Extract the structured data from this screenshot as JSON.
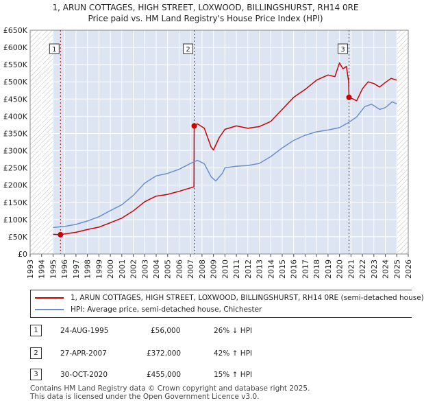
{
  "title_line1": "1, ARUN COTTAGES, HIGH STREET, LOXWOOD, BILLINGSHURST, RH14 0RE",
  "title_line2": "Price paid vs. HM Land Registry's House Price Index (HPI)",
  "colors": {
    "red": "#cc0000",
    "blue": "#6a8fcc",
    "shade": "#dde5f3",
    "grid": "#cccccc"
  },
  "chart_data": {
    "type": "line",
    "xlim": [
      1993,
      2026
    ],
    "ylim": [
      0,
      650000
    ],
    "y_ticks": [
      0,
      50000,
      100000,
      150000,
      200000,
      250000,
      300000,
      350000,
      400000,
      450000,
      500000,
      550000,
      600000,
      650000
    ],
    "y_tick_labels": [
      "£0",
      "£50K",
      "£100K",
      "£150K",
      "£200K",
      "£250K",
      "£300K",
      "£350K",
      "£400K",
      "£450K",
      "£500K",
      "£550K",
      "£600K",
      "£650K"
    ],
    "x_tick_labels": [
      "1993",
      "1994",
      "1995",
      "1996",
      "1997",
      "1998",
      "1999",
      "2000",
      "2001",
      "2002",
      "2003",
      "2004",
      "2005",
      "2006",
      "2007",
      "2008",
      "2009",
      "2010",
      "2011",
      "2012",
      "2013",
      "2014",
      "2015",
      "2016",
      "2017",
      "2018",
      "2019",
      "2020",
      "2021",
      "2022",
      "2023",
      "2024",
      "2025",
      "2026"
    ],
    "hatched_before": 1995.0,
    "hatched_after": 2025.0,
    "series": [
      {
        "name": "1, ARUN COTTAGES, HIGH STREET, LOXWOOD, BILLINGSHURST, RH14 0RE (semi-detached house)",
        "color": "#cc0000",
        "points": [
          [
            1995.0,
            57000
          ],
          [
            1995.65,
            56000
          ],
          [
            1996,
            58000
          ],
          [
            1997,
            63000
          ],
          [
            1998,
            71000
          ],
          [
            1999,
            78000
          ],
          [
            2000,
            91000
          ],
          [
            2001,
            104000
          ],
          [
            2002,
            125000
          ],
          [
            2003,
            152000
          ],
          [
            2004,
            168000
          ],
          [
            2005,
            173000
          ],
          [
            2006,
            182000
          ],
          [
            2007.3,
            195000
          ],
          [
            2007.32,
            372000
          ],
          [
            2007.6,
            378000
          ],
          [
            2008.2,
            365000
          ],
          [
            2008.8,
            310000
          ],
          [
            2009.0,
            302000
          ],
          [
            2009.5,
            338000
          ],
          [
            2010,
            362000
          ],
          [
            2011,
            372000
          ],
          [
            2012,
            365000
          ],
          [
            2013,
            370000
          ],
          [
            2014,
            385000
          ],
          [
            2015,
            420000
          ],
          [
            2016,
            455000
          ],
          [
            2017,
            478000
          ],
          [
            2018,
            505000
          ],
          [
            2019,
            520000
          ],
          [
            2019.6,
            515000
          ],
          [
            2020.0,
            555000
          ],
          [
            2020.3,
            538000
          ],
          [
            2020.6,
            545000
          ],
          [
            2020.8,
            500000
          ],
          [
            2020.83,
            455000
          ],
          [
            2021.2,
            450000
          ],
          [
            2021.5,
            445000
          ],
          [
            2022.0,
            480000
          ],
          [
            2022.5,
            500000
          ],
          [
            2023,
            495000
          ],
          [
            2023.5,
            485000
          ],
          [
            2024,
            498000
          ],
          [
            2024.5,
            510000
          ],
          [
            2025.0,
            505000
          ]
        ]
      },
      {
        "name": "HPI: Average price, semi-detached house, Chichester",
        "color": "#6a8fcc",
        "points": [
          [
            1995.0,
            77000
          ],
          [
            1996,
            80000
          ],
          [
            1997,
            86000
          ],
          [
            1998,
            96000
          ],
          [
            1999,
            108000
          ],
          [
            2000,
            126000
          ],
          [
            2001,
            143000
          ],
          [
            2002,
            170000
          ],
          [
            2003,
            206000
          ],
          [
            2004,
            227000
          ],
          [
            2005,
            234000
          ],
          [
            2006,
            246000
          ],
          [
            2007,
            263000
          ],
          [
            2007.6,
            272000
          ],
          [
            2008.2,
            262000
          ],
          [
            2008.8,
            224000
          ],
          [
            2009.2,
            212000
          ],
          [
            2009.8,
            235000
          ],
          [
            2010,
            250000
          ],
          [
            2011,
            255000
          ],
          [
            2012,
            257000
          ],
          [
            2013,
            263000
          ],
          [
            2014,
            283000
          ],
          [
            2015,
            308000
          ],
          [
            2016,
            330000
          ],
          [
            2017,
            345000
          ],
          [
            2018,
            355000
          ],
          [
            2019,
            360000
          ],
          [
            2020,
            367000
          ],
          [
            2020.8,
            382000
          ],
          [
            2021.5,
            398000
          ],
          [
            2022.2,
            428000
          ],
          [
            2022.8,
            435000
          ],
          [
            2023.5,
            420000
          ],
          [
            2024,
            425000
          ],
          [
            2024.6,
            442000
          ],
          [
            2025.0,
            436000
          ]
        ]
      }
    ],
    "markers": [
      {
        "label": "1",
        "x": 1995.65,
        "y": 56000
      },
      {
        "label": "2",
        "x": 2007.32,
        "y": 372000
      },
      {
        "label": "3",
        "x": 2020.83,
        "y": 455000
      }
    ]
  },
  "legend": {
    "red_label": "1, ARUN COTTAGES, HIGH STREET, LOXWOOD, BILLINGSHURST, RH14 0RE (semi-detached house)",
    "blue_label": "HPI: Average price, semi-detached house, Chichester"
  },
  "sales": [
    {
      "num": "1",
      "date": "24-AUG-1995",
      "price": "£56,000",
      "hpi": "26% ↓ HPI"
    },
    {
      "num": "2",
      "date": "27-APR-2007",
      "price": "£372,000",
      "hpi": "42% ↑ HPI"
    },
    {
      "num": "3",
      "date": "30-OCT-2020",
      "price": "£455,000",
      "hpi": "15% ↑ HPI"
    }
  ],
  "footer_line1": "Contains HM Land Registry data © Crown copyright and database right 2025.",
  "footer_line2": "This data is licensed under the Open Government Licence v3.0."
}
